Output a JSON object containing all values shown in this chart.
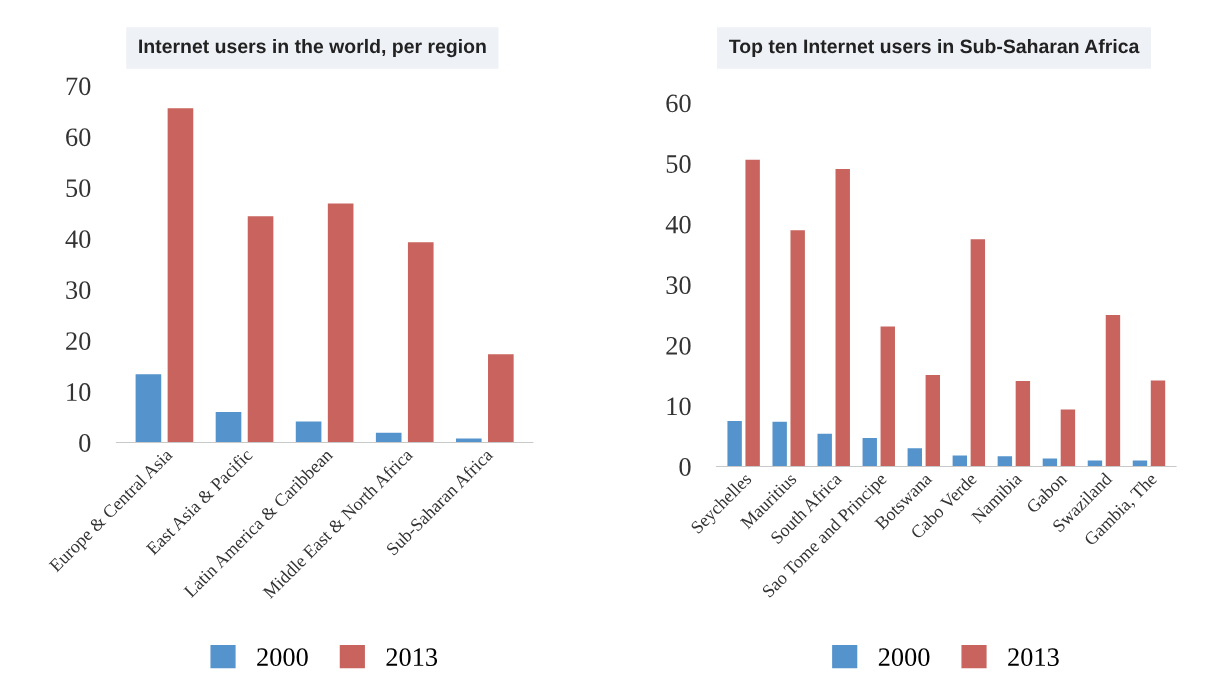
{
  "chart_data": [
    {
      "type": "bar",
      "title": "Internet users in the world, per region",
      "categories": [
        "Europe & Central Asia",
        "East Asia & Pacific",
        "Latin America & Caribbean",
        "Middle East & North Africa",
        "Sub-Saharan Africa"
      ],
      "series": [
        {
          "name": "2000",
          "color": "#5593cc",
          "values": [
            13.4,
            6.0,
            4.1,
            1.9,
            0.8
          ]
        },
        {
          "name": "2013",
          "color": "#c8635d",
          "values": [
            65.6,
            44.4,
            46.9,
            39.3,
            17.3
          ]
        }
      ],
      "ylim": [
        0,
        70
      ],
      "yticks": [
        0,
        10,
        20,
        30,
        40,
        50,
        60,
        70
      ],
      "grid": false,
      "legend": "bottom"
    },
    {
      "type": "bar",
      "title": "Top ten Internet users in Sub-Saharan Africa",
      "categories": [
        "Seychelles",
        "Mauritius",
        "South Africa",
        "Sao Tome and Principe",
        "Botswana",
        "Cabo Verde",
        "Namibia",
        "Gabon",
        "Swaziland",
        "Gambia, The"
      ],
      "series": [
        {
          "name": "2000",
          "color": "#5593cc",
          "values": [
            7.5,
            7.4,
            5.4,
            4.7,
            3.0,
            1.8,
            1.7,
            1.3,
            1.0,
            1.0
          ]
        },
        {
          "name": "2013",
          "color": "#c8635d",
          "values": [
            50.6,
            39.0,
            49.1,
            23.1,
            15.1,
            37.5,
            14.1,
            9.4,
            25.0,
            14.2
          ]
        }
      ],
      "ylim": [
        0,
        60
      ],
      "yticks": [
        0,
        10,
        20,
        30,
        40,
        50,
        60
      ],
      "grid": false,
      "legend": "bottom"
    }
  ]
}
